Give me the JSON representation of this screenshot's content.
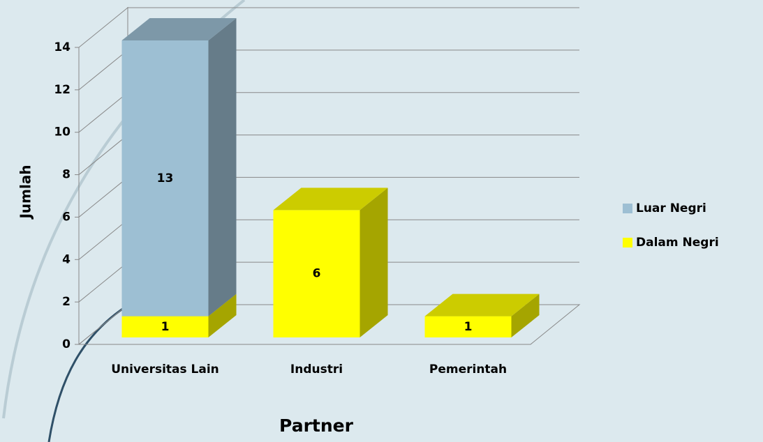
{
  "chart_data": {
    "type": "bar",
    "stacked": true,
    "categories": [
      "Universitas Lain",
      "Industri",
      "Pemerintah"
    ],
    "series": [
      {
        "name": "Dalam Negri",
        "color": "#ffff00",
        "values": [
          1,
          6,
          1
        ]
      },
      {
        "name": "Luar Negri",
        "color": "#9dbfd3",
        "values": [
          13,
          null,
          null
        ]
      }
    ],
    "ylim": [
      0,
      14
    ],
    "yticks": [
      0,
      2,
      4,
      6,
      8,
      10,
      12,
      14
    ],
    "xlabel": "Partner",
    "ylabel": "Jumlah",
    "grid": true,
    "legend": "right"
  }
}
